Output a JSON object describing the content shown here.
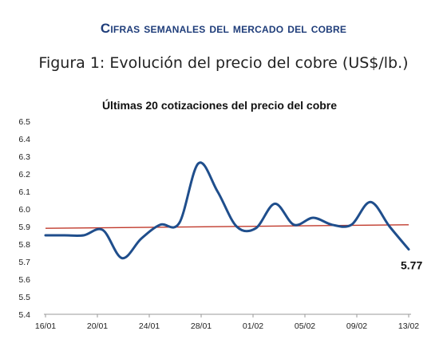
{
  "document": {
    "heading": "Cifras semanales del mercado del cobre",
    "figure_caption": "Figura 1: Evolución del precio del cobre (US$/lb.)"
  },
  "chart_data": {
    "type": "line",
    "title": "Últimas 20 cotizaciones del precio del cobre",
    "xlabel": "",
    "ylabel": "",
    "ylim": [
      5.4,
      6.5
    ],
    "yticks": [
      "5.4",
      "5.5",
      "5.6",
      "5.7",
      "5.8",
      "5.9",
      "6.0",
      "6.1",
      "6.2",
      "6.3",
      "6.4",
      "6.5"
    ],
    "xticks": [
      "16/01",
      "20/01",
      "24/01",
      "28/01",
      "01/02",
      "05/02",
      "09/02",
      "13/02"
    ],
    "grid": false,
    "series": [
      {
        "values": [
          5.85,
          5.85,
          5.85,
          5.88,
          5.72,
          5.83,
          5.91,
          5.92,
          6.26,
          6.1,
          5.9,
          5.89,
          6.03,
          5.91,
          5.95,
          5.91,
          5.91,
          6.04,
          5.9,
          5.77
        ],
        "color": "#1f4e8c"
      },
      {
        "kind": "trendline",
        "values": [
          5.89,
          5.91
        ],
        "color": "#c0392b"
      }
    ],
    "annotations": [
      {
        "text": "5.77",
        "target": "last-point"
      }
    ]
  }
}
